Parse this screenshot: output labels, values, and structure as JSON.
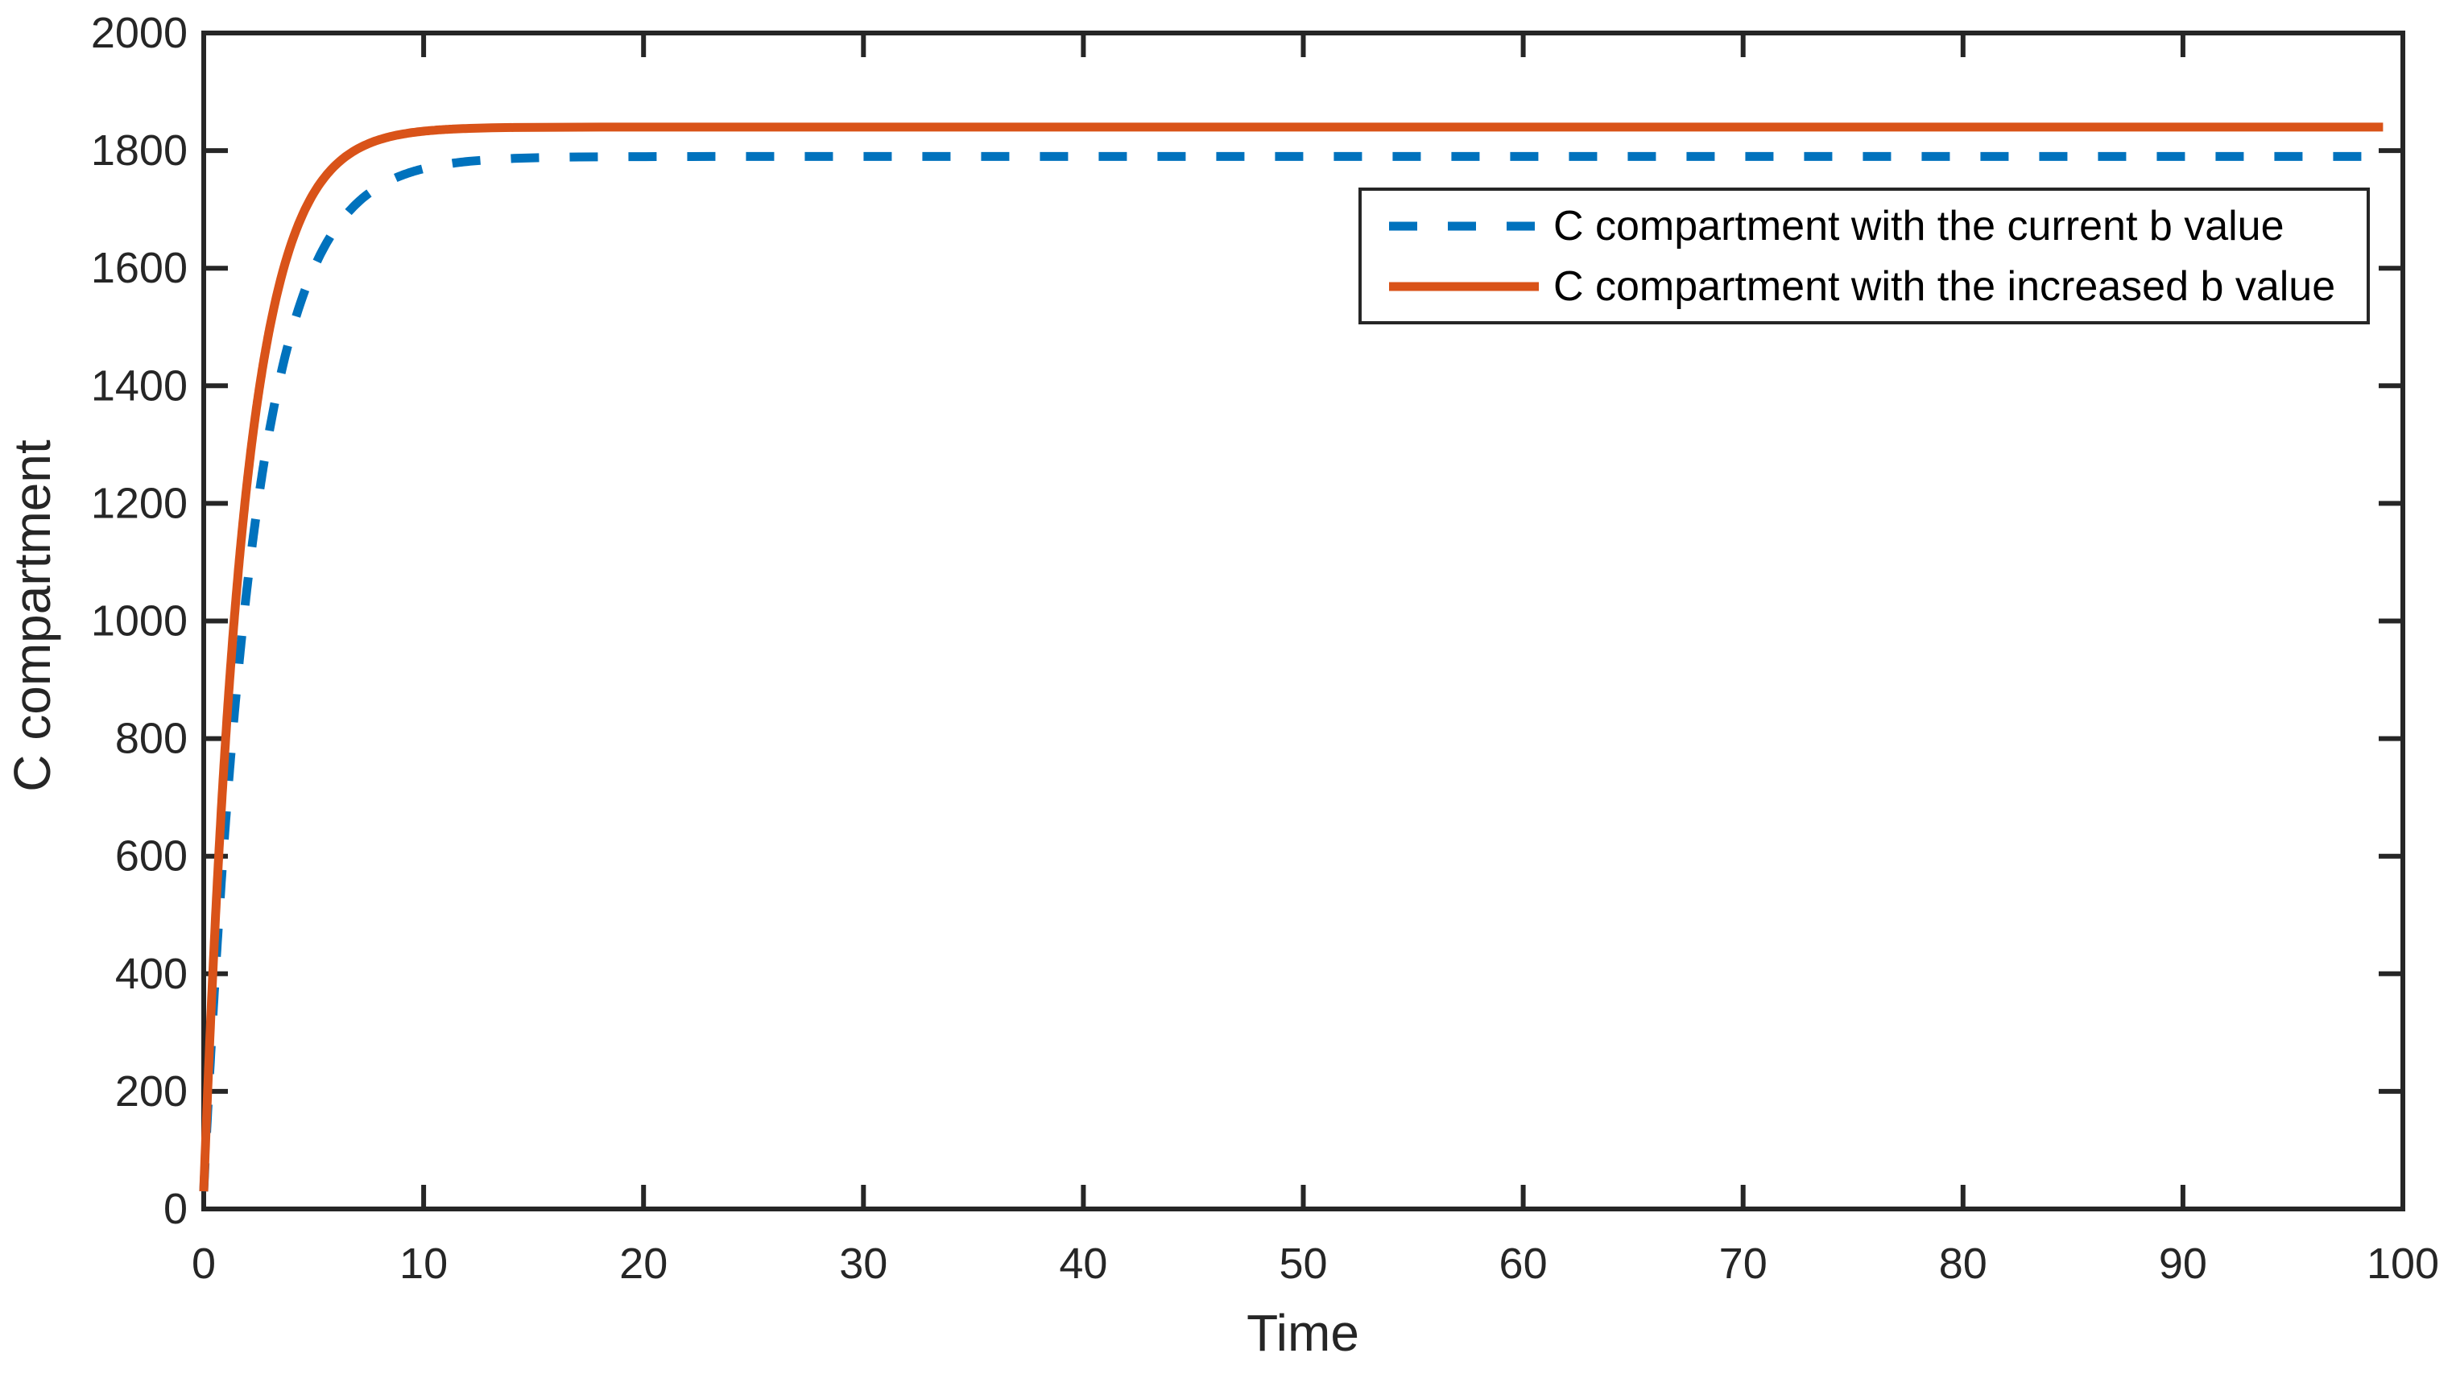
{
  "figure": {
    "background": "#ffffff",
    "axis_color": "#262626",
    "tick_label_color": "#262626",
    "tick_font_size": 54,
    "label_font_size": 64
  },
  "chart_data": {
    "type": "line",
    "title": "",
    "xlabel": "Time",
    "ylabel": "C compartment",
    "xlim": [
      0,
      100
    ],
    "ylim": [
      0,
      2000
    ],
    "x_ticks": [
      0,
      10,
      20,
      30,
      40,
      50,
      60,
      70,
      80,
      90,
      100
    ],
    "y_ticks": [
      0,
      200,
      400,
      600,
      800,
      1000,
      1200,
      1400,
      1600,
      1800,
      2000
    ],
    "grid": false,
    "legend": {
      "position": "upper right",
      "border": true,
      "background": "#ffffff"
    },
    "series": [
      {
        "name": "C compartment with the current b value",
        "color": "#0072BD",
        "style": "dashed",
        "line_width": 11,
        "dash_pattern": [
          35,
          38
        ],
        "model": {
          "initial_value": 30,
          "steady_state": 1790,
          "time_constant": 2.25
        },
        "points": {
          "t": [
            0,
            0.5,
            1,
            1.5,
            2,
            2.5,
            3,
            4,
            5,
            6,
            7,
            8,
            10,
            12,
            15,
            20,
            30,
            40,
            50,
            60,
            70,
            80,
            90,
            100
          ],
          "C": [
            30,
            381,
            661,
            886,
            1067,
            1211,
            1326,
            1493,
            1600,
            1667,
            1712,
            1740,
            1769,
            1782,
            1788,
            1790,
            1790,
            1790,
            1790,
            1790,
            1790,
            1790,
            1790,
            1790
          ]
        }
      },
      {
        "name": "C compartment with the increased b value",
        "color": "#D95319",
        "style": "solid",
        "line_width": 11,
        "dash_pattern": null,
        "model": {
          "initial_value": 30,
          "steady_state": 1840,
          "time_constant": 1.8
        },
        "points": {
          "t": [
            0,
            0.5,
            1,
            1.5,
            2,
            2.5,
            3,
            4,
            5,
            6,
            7,
            8,
            10,
            12,
            15,
            20,
            30,
            40,
            50,
            60,
            70,
            80,
            90,
            100
          ],
          "C": [
            30,
            469,
            802,
            1053,
            1244,
            1389,
            1498,
            1644,
            1728,
            1775,
            1803,
            1819,
            1833,
            1838,
            1840,
            1840,
            1840,
            1840,
            1840,
            1840,
            1840,
            1840,
            1840,
            1840
          ]
        }
      }
    ]
  }
}
